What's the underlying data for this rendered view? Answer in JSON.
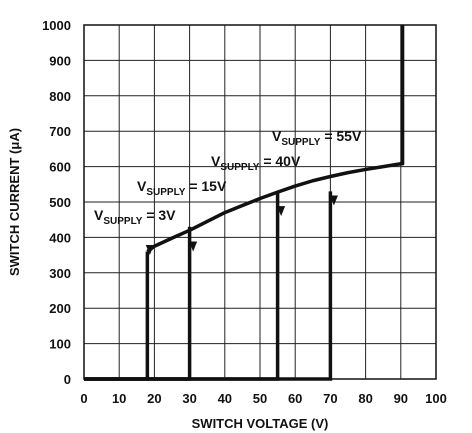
{
  "chart_data": {
    "type": "line",
    "title": "",
    "xlabel": "SWITCH VOLTAGE (V)",
    "ylabel": "SWITCH CURRENT (μA)",
    "xlim": [
      0,
      100
    ],
    "ylim": [
      0,
      1000
    ],
    "x_ticks": [
      "0",
      "10",
      "20",
      "30",
      "40",
      "50",
      "60",
      "70",
      "80",
      "90",
      "100"
    ],
    "y_ticks": [
      "0",
      "100",
      "200",
      "300",
      "400",
      "500",
      "600",
      "700",
      "800",
      "900",
      "1000"
    ],
    "grid": true,
    "envelope": {
      "x": [
        18,
        20,
        25,
        30,
        35,
        40,
        45,
        50,
        55,
        60,
        65,
        70,
        75,
        80,
        85,
        90,
        90.5,
        90.5
      ],
      "y": [
        360,
        375,
        398,
        420,
        445,
        470,
        490,
        510,
        528,
        545,
        560,
        572,
        583,
        592,
        600,
        608,
        608,
        1000
      ]
    },
    "series": [
      {
        "supply": "3V",
        "x": [
          0,
          18,
          18
        ],
        "y": [
          0,
          0,
          360
        ]
      },
      {
        "supply": "15V",
        "x": [
          0,
          30,
          30
        ],
        "y": [
          0,
          0,
          430
        ]
      },
      {
        "supply": "40V",
        "x": [
          0,
          55,
          55
        ],
        "y": [
          0,
          0,
          528
        ]
      },
      {
        "supply": "55V",
        "x": [
          0,
          70,
          70
        ],
        "y": [
          0,
          0,
          530
        ]
      }
    ],
    "arrows": [
      {
        "x": 18.7,
        "y": 370
      },
      {
        "x": 31,
        "y": 380
      },
      {
        "x": 56,
        "y": 480
      },
      {
        "x": 71,
        "y": 510
      }
    ],
    "annotations": [
      {
        "prefix": "V",
        "sub": "SUPPLY",
        "suffix": " = 3V"
      },
      {
        "prefix": "V",
        "sub": "SUPPLY",
        "suffix": " = 15V"
      },
      {
        "prefix": "V",
        "sub": "SUPPLY",
        "suffix": " = 40V"
      },
      {
        "prefix": "V",
        "sub": "SUPPLY",
        "suffix": " = 55V"
      }
    ]
  }
}
